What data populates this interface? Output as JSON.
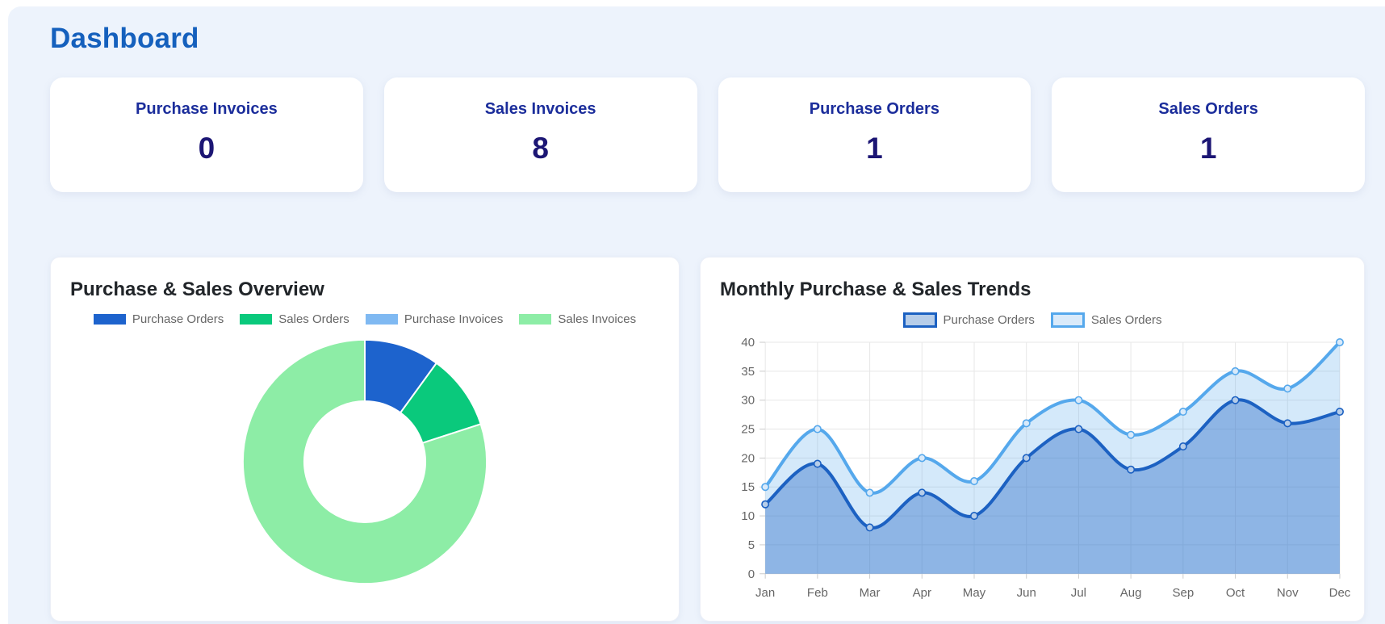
{
  "page": {
    "title": "Dashboard"
  },
  "stats": [
    {
      "label": "Purchase Invoices",
      "value": "0"
    },
    {
      "label": "Sales Invoices",
      "value": "8"
    },
    {
      "label": "Purchase Orders",
      "value": "1"
    },
    {
      "label": "Sales Orders",
      "value": "1"
    }
  ],
  "colors": {
    "page_background": "#edf3fc",
    "heading": "#1560bd",
    "stat_label": "#1b2d9b",
    "stat_value": "#1c1674",
    "chart_title": "#212529",
    "axis_text": "#666666",
    "grid_line": "#e7e7e7",
    "axis_border": "#dddddd",
    "tick_mark": "#cccccc"
  },
  "chart_data": [
    {
      "type": "pie",
      "subtype": "doughnut",
      "title": "Purchase & Sales Overview",
      "labels": [
        "Purchase Orders",
        "Sales Orders",
        "Purchase Invoices",
        "Sales Invoices"
      ],
      "values": [
        1,
        1,
        0,
        8
      ],
      "colors": [
        "#1d63cd",
        "#0ac97c",
        "#7fb9f2",
        "#8deda6"
      ],
      "cutout_percent": 50,
      "border_color": "#ffffff",
      "legend_position": "top"
    },
    {
      "type": "area",
      "title": "Monthly Purchase & Sales Trends",
      "categories": [
        "Jan",
        "Feb",
        "Mar",
        "Apr",
        "May",
        "Jun",
        "Jul",
        "Aug",
        "Sep",
        "Oct",
        "Nov",
        "Dec"
      ],
      "series": [
        {
          "name": "Purchase Orders",
          "values": [
            12,
            19,
            8,
            14,
            10,
            20,
            25,
            18,
            22,
            30,
            26,
            28
          ],
          "line_color": "#1c61c2",
          "fill_color": "rgba(28,97,194,0.38)",
          "point_fill": "#b6cde9"
        },
        {
          "name": "Sales Orders",
          "values": [
            15,
            25,
            14,
            20,
            16,
            26,
            30,
            24,
            28,
            35,
            32,
            40
          ],
          "line_color": "#55a8ec",
          "fill_color": "rgba(85,168,236,0.25)",
          "point_fill": "#d9eafa"
        }
      ],
      "xlabel": "",
      "ylabel": "",
      "ylim": [
        0,
        40
      ],
      "ytick_step": 5,
      "grid": true,
      "smooth": true,
      "legend_position": "top"
    }
  ]
}
